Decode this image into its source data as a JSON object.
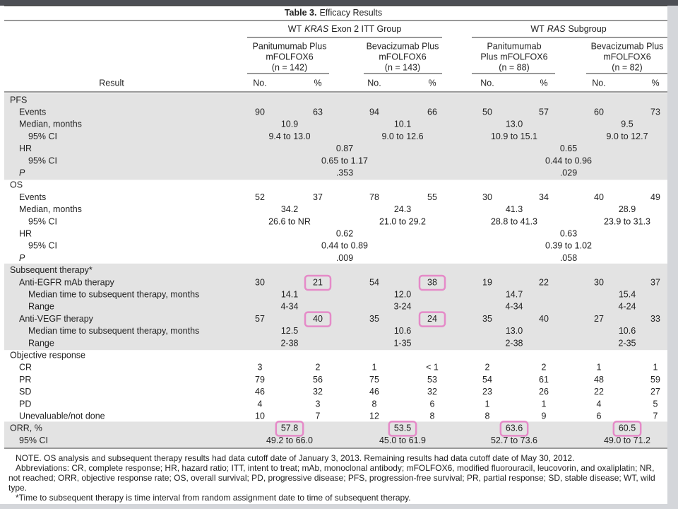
{
  "title": {
    "label": "Table 3.",
    "text": "Efficacy Results"
  },
  "groups": [
    {
      "prefix": "WT",
      "italic": "KRAS",
      "suffix": "Exon 2 ITT Group"
    },
    {
      "prefix": "WT",
      "italic": "RAS",
      "suffix": "Subgroup"
    }
  ],
  "columns": [
    [
      "Panitumumab Plus",
      "mFOLFOX6",
      "(n = 142)"
    ],
    [
      "Bevacizumab Plus",
      "mFOLFOX6",
      "(n = 143)"
    ],
    [
      "Panitumumab",
      "Plus mFOLFOX6",
      "(n = 88)"
    ],
    [
      "Bevacizumab Plus",
      "mFOLFOX6",
      "(n = 82)"
    ]
  ],
  "result_header": "Result",
  "no_header": "No.",
  "pct_header": "%",
  "sections": [
    {
      "shaded": true,
      "rows": [
        {
          "label": "PFS",
          "indent": 0
        },
        {
          "label": "Events",
          "indent": 1,
          "values": [
            "90",
            "63",
            "94",
            "66",
            "50",
            "57",
            "60",
            "73"
          ]
        },
        {
          "label": "Median, months",
          "indent": 1,
          "merged": [
            "10.9",
            "10.1",
            "13.0",
            "9.5"
          ]
        },
        {
          "label": "95% CI",
          "indent": 2,
          "merged": [
            "9.4 to 13.0",
            "9.0 to 12.6",
            "10.9 to 15.1",
            "9.0 to 12.7"
          ]
        },
        {
          "label": "HR",
          "indent": 1,
          "pair": [
            "0.87",
            "0.65"
          ]
        },
        {
          "label": "95% CI",
          "indent": 2,
          "pair": [
            "0.65 to 1.17",
            "0.44 to 0.96"
          ]
        },
        {
          "label": "P",
          "indent": 1,
          "italic": true,
          "pair": [
            ".353",
            ".029"
          ]
        }
      ]
    },
    {
      "shaded": false,
      "rows": [
        {
          "label": "OS",
          "indent": 0
        },
        {
          "label": "Events",
          "indent": 1,
          "values": [
            "52",
            "37",
            "78",
            "55",
            "30",
            "34",
            "40",
            "49"
          ]
        },
        {
          "label": "Median, months",
          "indent": 1,
          "merged": [
            "34.2",
            "24.3",
            "41.3",
            "28.9"
          ]
        },
        {
          "label": "95% CI",
          "indent": 2,
          "merged": [
            "26.6 to NR",
            "21.0 to 29.2",
            "28.8 to 41.3",
            "23.9 to 31.3"
          ]
        },
        {
          "label": "HR",
          "indent": 1,
          "pair": [
            "0.62",
            "0.63"
          ]
        },
        {
          "label": "95% CI",
          "indent": 2,
          "pair": [
            "0.44 to 0.89",
            "0.39 to 1.02"
          ]
        },
        {
          "label": "P",
          "indent": 1,
          "italic": true,
          "pair": [
            ".009",
            ".058"
          ]
        }
      ]
    },
    {
      "shaded": true,
      "rows": [
        {
          "label": "Subsequent therapy*",
          "indent": 0
        },
        {
          "label": "Anti-EGFR mAb therapy",
          "indent": 1,
          "values": [
            "30",
            "21",
            "54",
            "38",
            "19",
            "22",
            "30",
            "37"
          ],
          "boxed": [
            1,
            3
          ]
        },
        {
          "label": "Median time to subsequent therapy, months",
          "indent": 2,
          "merged": [
            "14.1",
            "12.0",
            "14.7",
            "15.4"
          ]
        },
        {
          "label": "Range",
          "indent": 2,
          "merged": [
            "4-34",
            "3-24",
            "4-34",
            "4-24"
          ]
        },
        {
          "label": "Anti-VEGF therapy",
          "indent": 1,
          "values": [
            "57",
            "40",
            "35",
            "24",
            "35",
            "40",
            "27",
            "33"
          ],
          "boxed": [
            1,
            3
          ]
        },
        {
          "label": "Median time to subsequent therapy, months",
          "indent": 2,
          "merged": [
            "12.5",
            "10.6",
            "13.0",
            "10.6"
          ]
        },
        {
          "label": "Range",
          "indent": 2,
          "merged": [
            "2-38",
            "1-35",
            "2-38",
            "2-35"
          ]
        }
      ]
    },
    {
      "shaded": false,
      "rows": [
        {
          "label": "Objective response",
          "indent": 0
        },
        {
          "label": "CR",
          "indent": 1,
          "values": [
            "3",
            "2",
            "1",
            "< 1",
            "2",
            "2",
            "1",
            "1"
          ]
        },
        {
          "label": "PR",
          "indent": 1,
          "values": [
            "79",
            "56",
            "75",
            "53",
            "54",
            "61",
            "48",
            "59"
          ]
        },
        {
          "label": "SD",
          "indent": 1,
          "values": [
            "46",
            "32",
            "46",
            "32",
            "23",
            "26",
            "22",
            "27"
          ]
        },
        {
          "label": "PD",
          "indent": 1,
          "values": [
            "4",
            "3",
            "8",
            "6",
            "1",
            "1",
            "4",
            "5"
          ]
        },
        {
          "label": "Unevaluable/not done",
          "indent": 1,
          "values": [
            "10",
            "7",
            "12",
            "8",
            "8",
            "9",
            "6",
            "7"
          ]
        }
      ]
    },
    {
      "shaded": true,
      "rows": [
        {
          "label": "ORR, %",
          "indent": 0,
          "merged": [
            "57.8",
            "53.5",
            "63.6",
            "60.5"
          ],
          "boxed": [
            0,
            1,
            2,
            3
          ]
        },
        {
          "label": "95% CI",
          "indent": 1,
          "merged": [
            "49.2 to 66.0",
            "45.0 to 61.9",
            "52.7 to 73.6",
            "49.0 to 71.2"
          ]
        }
      ]
    }
  ],
  "notes": [
    "NOTE. OS analysis and subsequent therapy results had data cutoff date of January 3, 2013. Remaining results had data cutoff date of May 30, 2012.",
    "Abbreviations: CR, complete response; HR, hazard ratio; ITT, intent to treat; mAb, monoclonal antibody; mFOLFOX6, modified fluorouracil, leucovorin, and oxaliplatin; NR, not reached; ORR, objective response rate; OS, overall survival; PD, progressive disease; PFS, progression-free survival; PR, partial response; SD, stable disease; WT, wild type.",
    "*Time to subsequent therapy is time interval from random assignment date to time of subsequent therapy."
  ]
}
